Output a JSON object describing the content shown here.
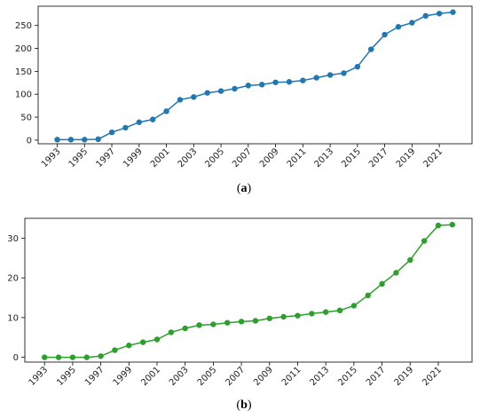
{
  "captions": {
    "a": "a",
    "b": "b"
  },
  "chart_data": [
    {
      "id": "a",
      "type": "line",
      "color": "#1f77b4",
      "marker": "circle",
      "x": [
        1993,
        1994,
        1995,
        1996,
        1997,
        1998,
        1999,
        2000,
        2001,
        2002,
        2003,
        2004,
        2005,
        2006,
        2007,
        2008,
        2009,
        2010,
        2011,
        2012,
        2013,
        2014,
        2015,
        2016,
        2017,
        2018,
        2019,
        2020,
        2021,
        2022
      ],
      "values": [
        1,
        1,
        1,
        2,
        17,
        27,
        39,
        45,
        63,
        88,
        94,
        103,
        107,
        112,
        119,
        121,
        126,
        127,
        130,
        136,
        142,
        146,
        160,
        198,
        230,
        247,
        256,
        271,
        276,
        279
      ],
      "xticks": [
        "1993",
        "1995",
        "1997",
        "1999",
        "2001",
        "2003",
        "2005",
        "2007",
        "2009",
        "2011",
        "2013",
        "2015",
        "2017",
        "2019",
        "2021"
      ],
      "yticks": [
        "0",
        "50",
        "100",
        "150",
        "200",
        "250"
      ],
      "ylim": [
        -8,
        292
      ],
      "grid": false
    },
    {
      "id": "b",
      "type": "line",
      "color": "#2ca02c",
      "marker": "circle",
      "x": [
        1993,
        1994,
        1995,
        1996,
        1997,
        1998,
        1999,
        2000,
        2001,
        2002,
        2003,
        2004,
        2005,
        2006,
        2007,
        2008,
        2009,
        2010,
        2011,
        2012,
        2013,
        2014,
        2015,
        2016,
        2017,
        2018,
        2019,
        2020,
        2021,
        2022
      ],
      "values": [
        0,
        0,
        0,
        0,
        0.3,
        1.8,
        3.0,
        3.8,
        4.5,
        6.3,
        7.3,
        8.1,
        8.3,
        8.7,
        9.0,
        9.2,
        9.8,
        10.2,
        10.5,
        11.0,
        11.4,
        11.8,
        13.0,
        15.6,
        18.5,
        21.3,
        24.5,
        29.3,
        33.2,
        33.4
      ],
      "xticks": [
        "1993",
        "1995",
        "1997",
        "1999",
        "2001",
        "2003",
        "2005",
        "2007",
        "2009",
        "2011",
        "2013",
        "2015",
        "2017",
        "2019",
        "2021"
      ],
      "yticks": [
        "0",
        "10",
        "20",
        "30"
      ],
      "ylim": [
        -1.2,
        35
      ]
    }
  ]
}
